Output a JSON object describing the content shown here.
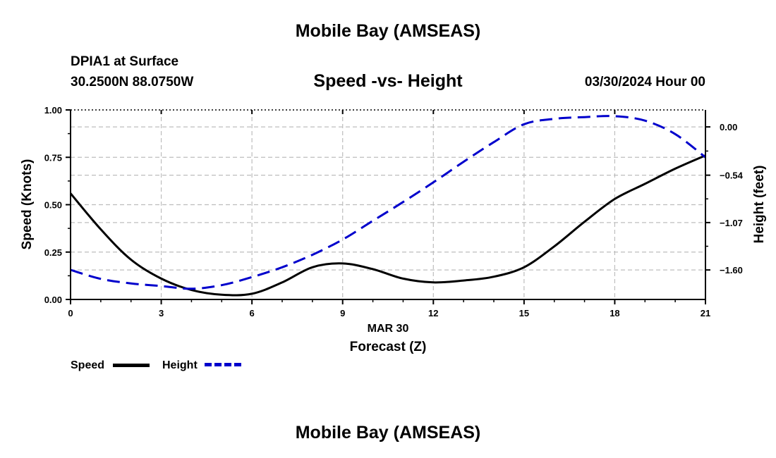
{
  "header": {
    "title_top": "Mobile Bay (AMSEAS)",
    "title_bottom": "Mobile Bay (AMSEAS)",
    "station": "DPIA1 at Surface",
    "coords": "30.2500N  88.0750W",
    "datetime": "03/30/2024 Hour 00"
  },
  "chart_data": {
    "type": "line",
    "title": "Speed -vs- Height",
    "xlabel": "Forecast (Z)",
    "date_label": "MAR 30",
    "ylabel": "Speed (Knots)",
    "y2label": "Height (feet)",
    "xlim": [
      0,
      21
    ],
    "ylim": [
      0,
      1
    ],
    "y2lim": [
      -1.93,
      0.19
    ],
    "x_ticks": [
      0,
      3,
      6,
      9,
      12,
      15,
      18,
      21
    ],
    "x_tick_labels": [
      "0",
      "3",
      "6",
      "9",
      "12",
      "15",
      "18",
      "21"
    ],
    "y_ticks": [
      0,
      0.25,
      0.5,
      0.75,
      1.0
    ],
    "y_tick_labels": [
      "0.00",
      "0.25",
      "0.50",
      "0.75",
      "1.00"
    ],
    "y2_ticks": [
      0.0,
      -0.54,
      -1.07,
      -1.6
    ],
    "y2_tick_labels": [
      "0.00",
      "−0.54",
      "−1.07",
      "−1.60"
    ],
    "grid": true,
    "legend_position": "bottom-left",
    "series": [
      {
        "name": "Speed",
        "axis": "left",
        "color": "#000000",
        "style": "solid",
        "x": [
          0,
          1,
          2,
          3,
          4,
          5,
          6,
          7,
          8,
          9,
          10,
          11,
          12,
          13,
          14,
          15,
          16,
          17,
          18,
          19,
          20,
          21
        ],
        "values": [
          0.56,
          0.37,
          0.21,
          0.11,
          0.05,
          0.025,
          0.03,
          0.09,
          0.17,
          0.19,
          0.16,
          0.11,
          0.09,
          0.1,
          0.12,
          0.17,
          0.28,
          0.41,
          0.53,
          0.61,
          0.69,
          0.76
        ]
      },
      {
        "name": "Height",
        "axis": "right",
        "color": "#0000cc",
        "style": "dashed",
        "x": [
          0,
          1,
          2,
          3,
          4,
          5,
          6,
          7,
          8,
          9,
          10,
          11,
          12,
          13,
          14,
          15,
          16,
          17,
          18,
          19,
          20,
          21
        ],
        "values": [
          -1.6,
          -1.7,
          -1.75,
          -1.78,
          -1.81,
          -1.77,
          -1.68,
          -1.57,
          -1.43,
          -1.26,
          -1.05,
          -0.84,
          -0.62,
          -0.39,
          -0.17,
          0.03,
          0.09,
          0.11,
          0.12,
          0.07,
          -0.08,
          -0.34
        ]
      }
    ]
  },
  "legend": {
    "speed_label": "Speed",
    "height_label": "Height"
  }
}
